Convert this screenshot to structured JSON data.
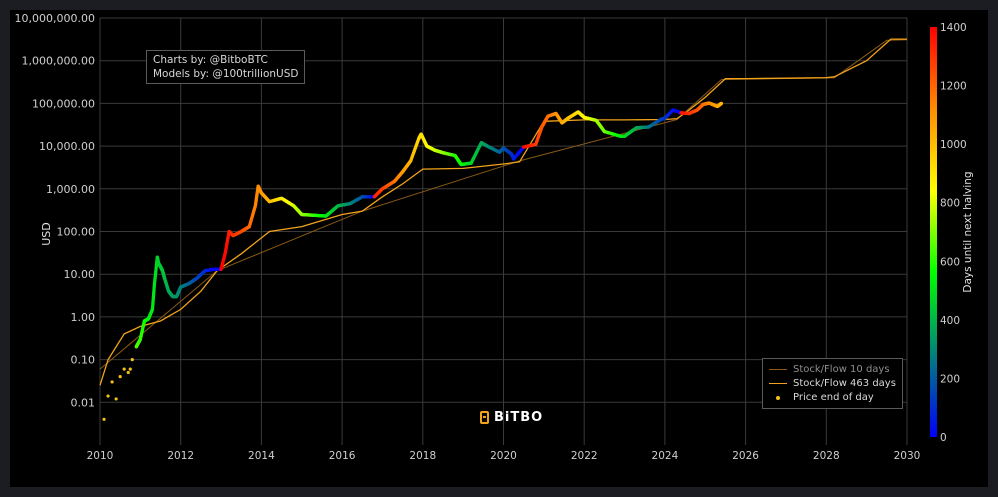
{
  "chart_data": {
    "type": "scatter",
    "title": "",
    "xlabel": "",
    "ylabel": "USD",
    "y_scale": "log",
    "xlim": [
      2010,
      2030
    ],
    "ylim": [
      0.001,
      10000000
    ],
    "x_ticks": [
      "2010",
      "2012",
      "2014",
      "2016",
      "2018",
      "2020",
      "2022",
      "2024",
      "2026",
      "2028",
      "2030"
    ],
    "y_ticks": [
      "10,000,000.00",
      "1,000,000.00",
      "100,000.00",
      "10,000.00",
      "1,000.00",
      "100.00",
      "10.00",
      "1.00",
      "0.10",
      "0.01"
    ],
    "grid": true,
    "legend_position": "bottom-right",
    "colorbar": {
      "label": "Days until next halving",
      "range": [
        0,
        1400
      ],
      "ticks": [
        "1400",
        "1200",
        "1000",
        "800",
        "600",
        "400",
        "200",
        "0"
      ],
      "colors": [
        "#ff0000",
        "#ff8c00",
        "#ffff00",
        "#00ff00",
        "#007f7f",
        "#0000ff"
      ]
    },
    "series": [
      {
        "name": "Stock/Flow 10 days",
        "color": "#8a5a14",
        "x": [
          2010.0,
          2012.9,
          2016.5,
          2020.4,
          2024.3,
          2025.4,
          2028.2,
          2029.5,
          2030.0
        ],
        "y": [
          0.06,
          12,
          300,
          4500,
          42000,
          360000,
          400000,
          3000000,
          3100000
        ]
      },
      {
        "name": "Stock/Flow 463 days",
        "color": "#f2a31b",
        "x": [
          2010.0,
          2010.2,
          2010.6,
          2011.0,
          2011.5,
          2012.0,
          2012.5,
          2012.9,
          2013.5,
          2014.2,
          2015.0,
          2016.0,
          2016.5,
          2017.0,
          2017.5,
          2018.0,
          2019.0,
          2020.0,
          2020.4,
          2021.0,
          2022.0,
          2023.0,
          2024.0,
          2024.3,
          2024.6,
          2025.0,
          2025.5,
          2026.0,
          2027.0,
          2028.0,
          2028.2,
          2029.0,
          2029.6,
          2030.0
        ],
        "y": [
          0.025,
          0.1,
          0.4,
          0.6,
          0.8,
          1.5,
          4,
          12,
          30,
          100,
          130,
          250,
          300,
          650,
          1300,
          2900,
          3000,
          3800,
          4300,
          38000,
          41000,
          41000,
          42000,
          44000,
          70000,
          140000,
          380000,
          380000,
          390000,
          400000,
          420000,
          1000000,
          3200000,
          3200000
        ]
      },
      {
        "name": "Price end of day",
        "color": "#f2c21b",
        "x": [
          2010.1,
          2010.2,
          2010.3,
          2010.4,
          2010.5,
          2010.6,
          2010.7,
          2010.75,
          2010.8,
          2010.9,
          2011.0,
          2011.1,
          2011.2,
          2011.3,
          2011.35,
          2011.42,
          2011.45,
          2011.5,
          2011.55,
          2011.6,
          2011.7,
          2011.8,
          2011.9,
          2012.0,
          2012.2,
          2012.4,
          2012.6,
          2012.8,
          2013.0,
          2013.1,
          2013.2,
          2013.3,
          2013.5,
          2013.7,
          2013.85,
          2013.92,
          2014.0,
          2014.2,
          2014.5,
          2014.8,
          2015.0,
          2015.3,
          2015.6,
          2015.9,
          2016.2,
          2016.5,
          2016.8,
          2017.0,
          2017.3,
          2017.5,
          2017.7,
          2017.9,
          2017.96,
          2018.1,
          2018.3,
          2018.5,
          2018.8,
          2018.95,
          2019.2,
          2019.45,
          2019.6,
          2019.9,
          2020.0,
          2020.2,
          2020.25,
          2020.5,
          2020.8,
          2020.95,
          2021.1,
          2021.3,
          2021.45,
          2021.6,
          2021.85,
          2022.0,
          2022.3,
          2022.5,
          2022.9,
          2023.0,
          2023.3,
          2023.6,
          2023.9,
          2024.0,
          2024.2,
          2024.4,
          2024.6,
          2024.8,
          2024.95,
          2025.1,
          2025.3,
          2025.4
        ],
        "y": [
          0.004,
          0.014,
          0.03,
          0.012,
          0.04,
          0.06,
          0.05,
          0.06,
          0.1,
          0.2,
          0.3,
          0.8,
          0.9,
          1.5,
          6,
          25,
          18,
          15,
          12,
          8,
          4,
          3,
          3,
          5,
          6,
          8,
          12,
          13,
          13,
          30,
          100,
          80,
          100,
          130,
          400,
          1150,
          800,
          500,
          600,
          400,
          250,
          240,
          230,
          400,
          450,
          650,
          650,
          1000,
          1500,
          2500,
          4500,
          15000,
          19000,
          10000,
          8000,
          7000,
          6000,
          3700,
          4000,
          12000,
          10000,
          7200,
          9000,
          6500,
          5000,
          9500,
          11000,
          28000,
          50000,
          58000,
          35000,
          45000,
          63000,
          47000,
          40000,
          22000,
          17000,
          17000,
          27000,
          28000,
          42000,
          45000,
          70000,
          60000,
          58000,
          70000,
          95000,
          102000,
          85000,
          100000
        ],
        "days_until_halving": [
          850,
          820,
          780,
          760,
          740,
          720,
          700,
          690,
          680,
          650,
          610,
          580,
          540,
          510,
          500,
          470,
          460,
          450,
          440,
          420,
          380,
          350,
          330,
          290,
          230,
          160,
          90,
          20,
          1400,
          1380,
          1350,
          1300,
          1260,
          1190,
          1140,
          1120,
          1090,
          1010,
          900,
          790,
          730,
          620,
          520,
          410,
          300,
          190,
          1340,
          1280,
          1170,
          1090,
          1020,
          940,
          920,
          860,
          790,
          720,
          610,
          560,
          470,
          380,
          330,
          220,
          190,
          110,
          70,
          1390,
          1280,
          1230,
          1180,
          1110,
          1060,
          1000,
          910,
          860,
          750,
          680,
          530,
          490,
          380,
          270,
          160,
          120,
          40,
          1380,
          1310,
          1240,
          1190,
          1130,
          1060,
          1020
        ]
      }
    ],
    "annotations": [
      "Charts by: @BitboBTC",
      "Models by: @100trillionUSD"
    ]
  },
  "credits": {
    "line1": "Charts by: @BitboBTC",
    "line2": "Models by: @100trillionUSD"
  },
  "logo": {
    "text": "BiTBO",
    "icon": "bitbo-logo-icon"
  }
}
